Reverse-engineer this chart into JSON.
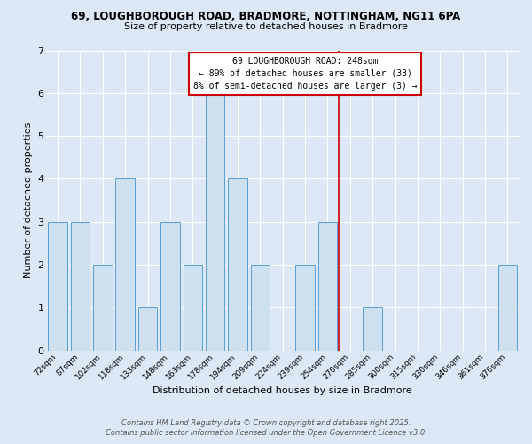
{
  "title_line1": "69, LOUGHBOROUGH ROAD, BRADMORE, NOTTINGHAM, NG11 6PA",
  "title_line2": "Size of property relative to detached houses in Bradmore",
  "xlabel": "Distribution of detached houses by size in Bradmore",
  "ylabel": "Number of detached properties",
  "categories": [
    "72sqm",
    "87sqm",
    "102sqm",
    "118sqm",
    "133sqm",
    "148sqm",
    "163sqm",
    "178sqm",
    "194sqm",
    "209sqm",
    "224sqm",
    "239sqm",
    "254sqm",
    "270sqm",
    "285sqm",
    "300sqm",
    "315sqm",
    "330sqm",
    "346sqm",
    "361sqm",
    "376sqm"
  ],
  "values": [
    3,
    3,
    2,
    4,
    1,
    3,
    2,
    6,
    4,
    2,
    0,
    2,
    3,
    0,
    1,
    0,
    0,
    0,
    0,
    0,
    2
  ],
  "bar_color": "#cce0f0",
  "bar_edge_color": "#5a9fd4",
  "red_line_x": 12.5,
  "red_line_color": "#cc0000",
  "annotation_text": "69 LOUGHBOROUGH ROAD: 248sqm\n← 89% of detached houses are smaller (33)\n8% of semi-detached houses are larger (3) →",
  "annotation_box_color": "#ffffff",
  "annotation_border_color": "#cc0000",
  "ylim": [
    0,
    7
  ],
  "yticks": [
    0,
    1,
    2,
    3,
    4,
    5,
    6,
    7
  ],
  "footer_line1": "Contains HM Land Registry data © Crown copyright and database right 2025.",
  "footer_line2": "Contains public sector information licensed under the Open Government Licence v3.0.",
  "bg_color": "#dce8f5",
  "plot_bg_color": "#dce8f5"
}
